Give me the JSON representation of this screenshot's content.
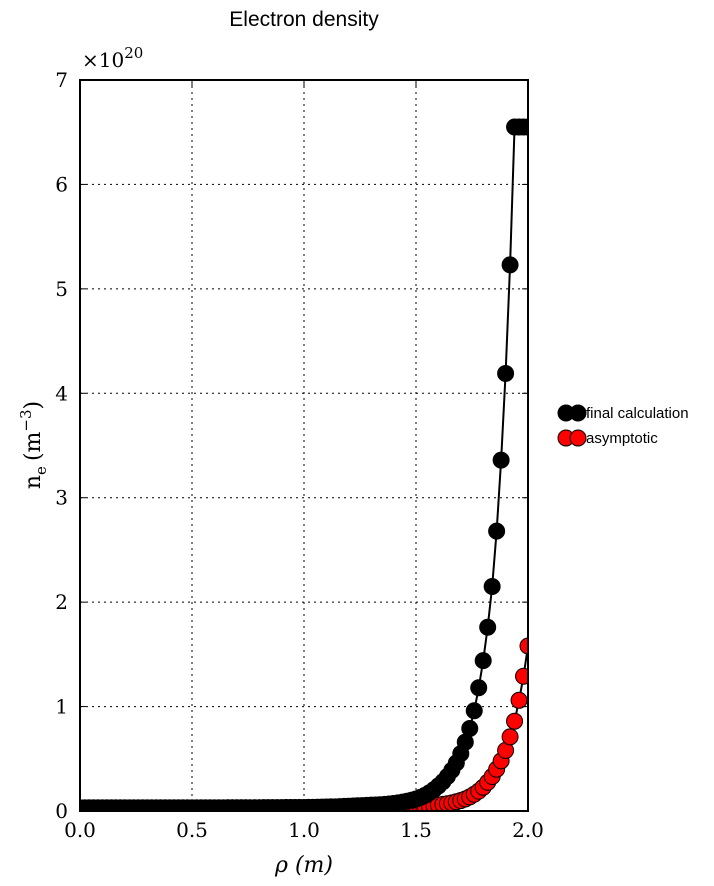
{
  "chart_data": {
    "type": "line",
    "title": "Electron density",
    "xlabel": "ρ (m)",
    "ylabel_main": "n",
    "ylabel_sub": "e",
    "ylabel_units": "(m",
    "ylabel_exp": "−3",
    "ylabel_close": ")",
    "y_scale_prefix": "×10",
    "y_scale_exp": "20",
    "xlim": [
      0.0,
      2.0
    ],
    "ylim": [
      0,
      7
    ],
    "y_scale_factor": 1e+20,
    "x_ticks": [
      "0.0",
      "0.5",
      "1.0",
      "1.5",
      "2.0"
    ],
    "y_ticks": [
      "0",
      "1",
      "2",
      "3",
      "4",
      "5",
      "6",
      "7"
    ],
    "grid": true,
    "legend_position": "right",
    "series": [
      {
        "name": "final calculation",
        "color": "#000000",
        "marker": "circle",
        "x": [
          0.0,
          0.02,
          0.04,
          0.06,
          0.08,
          0.1,
          0.12,
          0.14,
          0.16,
          0.18,
          0.2,
          0.22,
          0.24,
          0.26,
          0.28,
          0.3,
          0.32,
          0.34,
          0.36,
          0.38,
          0.4,
          0.42,
          0.44,
          0.46,
          0.48,
          0.5,
          0.52,
          0.54,
          0.56,
          0.58,
          0.6,
          0.62,
          0.64,
          0.66,
          0.68,
          0.7,
          0.72,
          0.74,
          0.76,
          0.78,
          0.8,
          0.82,
          0.84,
          0.86,
          0.88,
          0.9,
          0.92,
          0.94,
          0.96,
          0.98,
          1.0,
          1.02,
          1.04,
          1.06,
          1.08,
          1.1,
          1.12,
          1.14,
          1.16,
          1.18,
          1.2,
          1.22,
          1.24,
          1.26,
          1.28,
          1.3,
          1.32,
          1.34,
          1.36,
          1.38,
          1.4,
          1.42,
          1.44,
          1.46,
          1.48,
          1.5,
          1.52,
          1.54,
          1.56,
          1.58,
          1.6,
          1.62,
          1.64,
          1.66,
          1.68,
          1.7,
          1.72,
          1.74,
          1.76,
          1.78,
          1.8,
          1.82,
          1.84,
          1.86,
          1.88,
          1.9,
          1.92,
          1.94,
          1.96,
          1.98,
          2.0
        ],
        "y": [
          0.03,
          0.03,
          0.03,
          0.03,
          0.03,
          0.03,
          0.03,
          0.03,
          0.03,
          0.03,
          0.03,
          0.03,
          0.03,
          0.03,
          0.03,
          0.03,
          0.03,
          0.03,
          0.03,
          0.03,
          0.03,
          0.03,
          0.03,
          0.03,
          0.03,
          0.03,
          0.03,
          0.03,
          0.03,
          0.03,
          0.03,
          0.03,
          0.03,
          0.031,
          0.031,
          0.031,
          0.031,
          0.031,
          0.031,
          0.031,
          0.031,
          0.032,
          0.032,
          0.032,
          0.032,
          0.032,
          0.033,
          0.033,
          0.033,
          0.034,
          0.034,
          0.035,
          0.035,
          0.036,
          0.037,
          0.038,
          0.039,
          0.04,
          0.042,
          0.044,
          0.046,
          0.048,
          0.05,
          0.052,
          0.054,
          0.056,
          0.058,
          0.06,
          0.063,
          0.067,
          0.072,
          0.078,
          0.085,
          0.093,
          0.103,
          0.115,
          0.13,
          0.15,
          0.175,
          0.205,
          0.24,
          0.28,
          0.33,
          0.39,
          0.46,
          0.55,
          0.66,
          0.79,
          0.96,
          1.18,
          1.44,
          1.76,
          2.15,
          2.68,
          3.36,
          4.19,
          5.23,
          6.55,
          6.55,
          6.55,
          6.55
        ]
      },
      {
        "name": "asymptotic",
        "color": "#ff0000",
        "marker": "circle",
        "x": [
          0.0,
          0.02,
          0.04,
          0.06,
          0.08,
          0.1,
          0.12,
          0.14,
          0.16,
          0.18,
          0.2,
          0.22,
          0.24,
          0.26,
          0.28,
          0.3,
          0.32,
          0.34,
          0.36,
          0.38,
          0.4,
          0.42,
          0.44,
          0.46,
          0.48,
          0.5,
          0.52,
          0.54,
          0.56,
          0.58,
          0.6,
          0.62,
          0.64,
          0.66,
          0.68,
          0.7,
          0.72,
          0.74,
          0.76,
          0.78,
          0.8,
          0.82,
          0.84,
          0.86,
          0.88,
          0.9,
          0.92,
          0.94,
          0.96,
          0.98,
          1.0,
          1.02,
          1.04,
          1.06,
          1.08,
          1.1,
          1.12,
          1.14,
          1.16,
          1.18,
          1.2,
          1.22,
          1.24,
          1.26,
          1.28,
          1.3,
          1.32,
          1.34,
          1.36,
          1.38,
          1.4,
          1.42,
          1.44,
          1.46,
          1.48,
          1.5,
          1.52,
          1.54,
          1.56,
          1.58,
          1.6,
          1.62,
          1.64,
          1.66,
          1.68,
          1.7,
          1.72,
          1.74,
          1.76,
          1.78,
          1.8,
          1.82,
          1.84,
          1.86,
          1.88,
          1.9,
          1.92,
          1.94,
          1.96,
          1.98,
          2.0
        ],
        "y": [
          0.03,
          0.03,
          0.03,
          0.03,
          0.03,
          0.03,
          0.03,
          0.03,
          0.03,
          0.03,
          0.03,
          0.03,
          0.03,
          0.03,
          0.03,
          0.03,
          0.03,
          0.03,
          0.03,
          0.03,
          0.03,
          0.03,
          0.03,
          0.03,
          0.03,
          0.03,
          0.03,
          0.03,
          0.03,
          0.03,
          0.03,
          0.03,
          0.03,
          0.03,
          0.03,
          0.03,
          0.03,
          0.03,
          0.03,
          0.03,
          0.03,
          0.03,
          0.03,
          0.03,
          0.03,
          0.03,
          0.03,
          0.03,
          0.03,
          0.03,
          0.03,
          0.031,
          0.031,
          0.031,
          0.031,
          0.031,
          0.031,
          0.032,
          0.032,
          0.032,
          0.032,
          0.033,
          0.033,
          0.033,
          0.034,
          0.034,
          0.035,
          0.035,
          0.036,
          0.037,
          0.038,
          0.039,
          0.04,
          0.041,
          0.042,
          0.043,
          0.045,
          0.047,
          0.05,
          0.054,
          0.058,
          0.063,
          0.07,
          0.078,
          0.088,
          0.1,
          0.115,
          0.135,
          0.16,
          0.19,
          0.228,
          0.275,
          0.33,
          0.4,
          0.48,
          0.58,
          0.71,
          0.86,
          1.06,
          1.29,
          1.58
        ]
      }
    ]
  }
}
